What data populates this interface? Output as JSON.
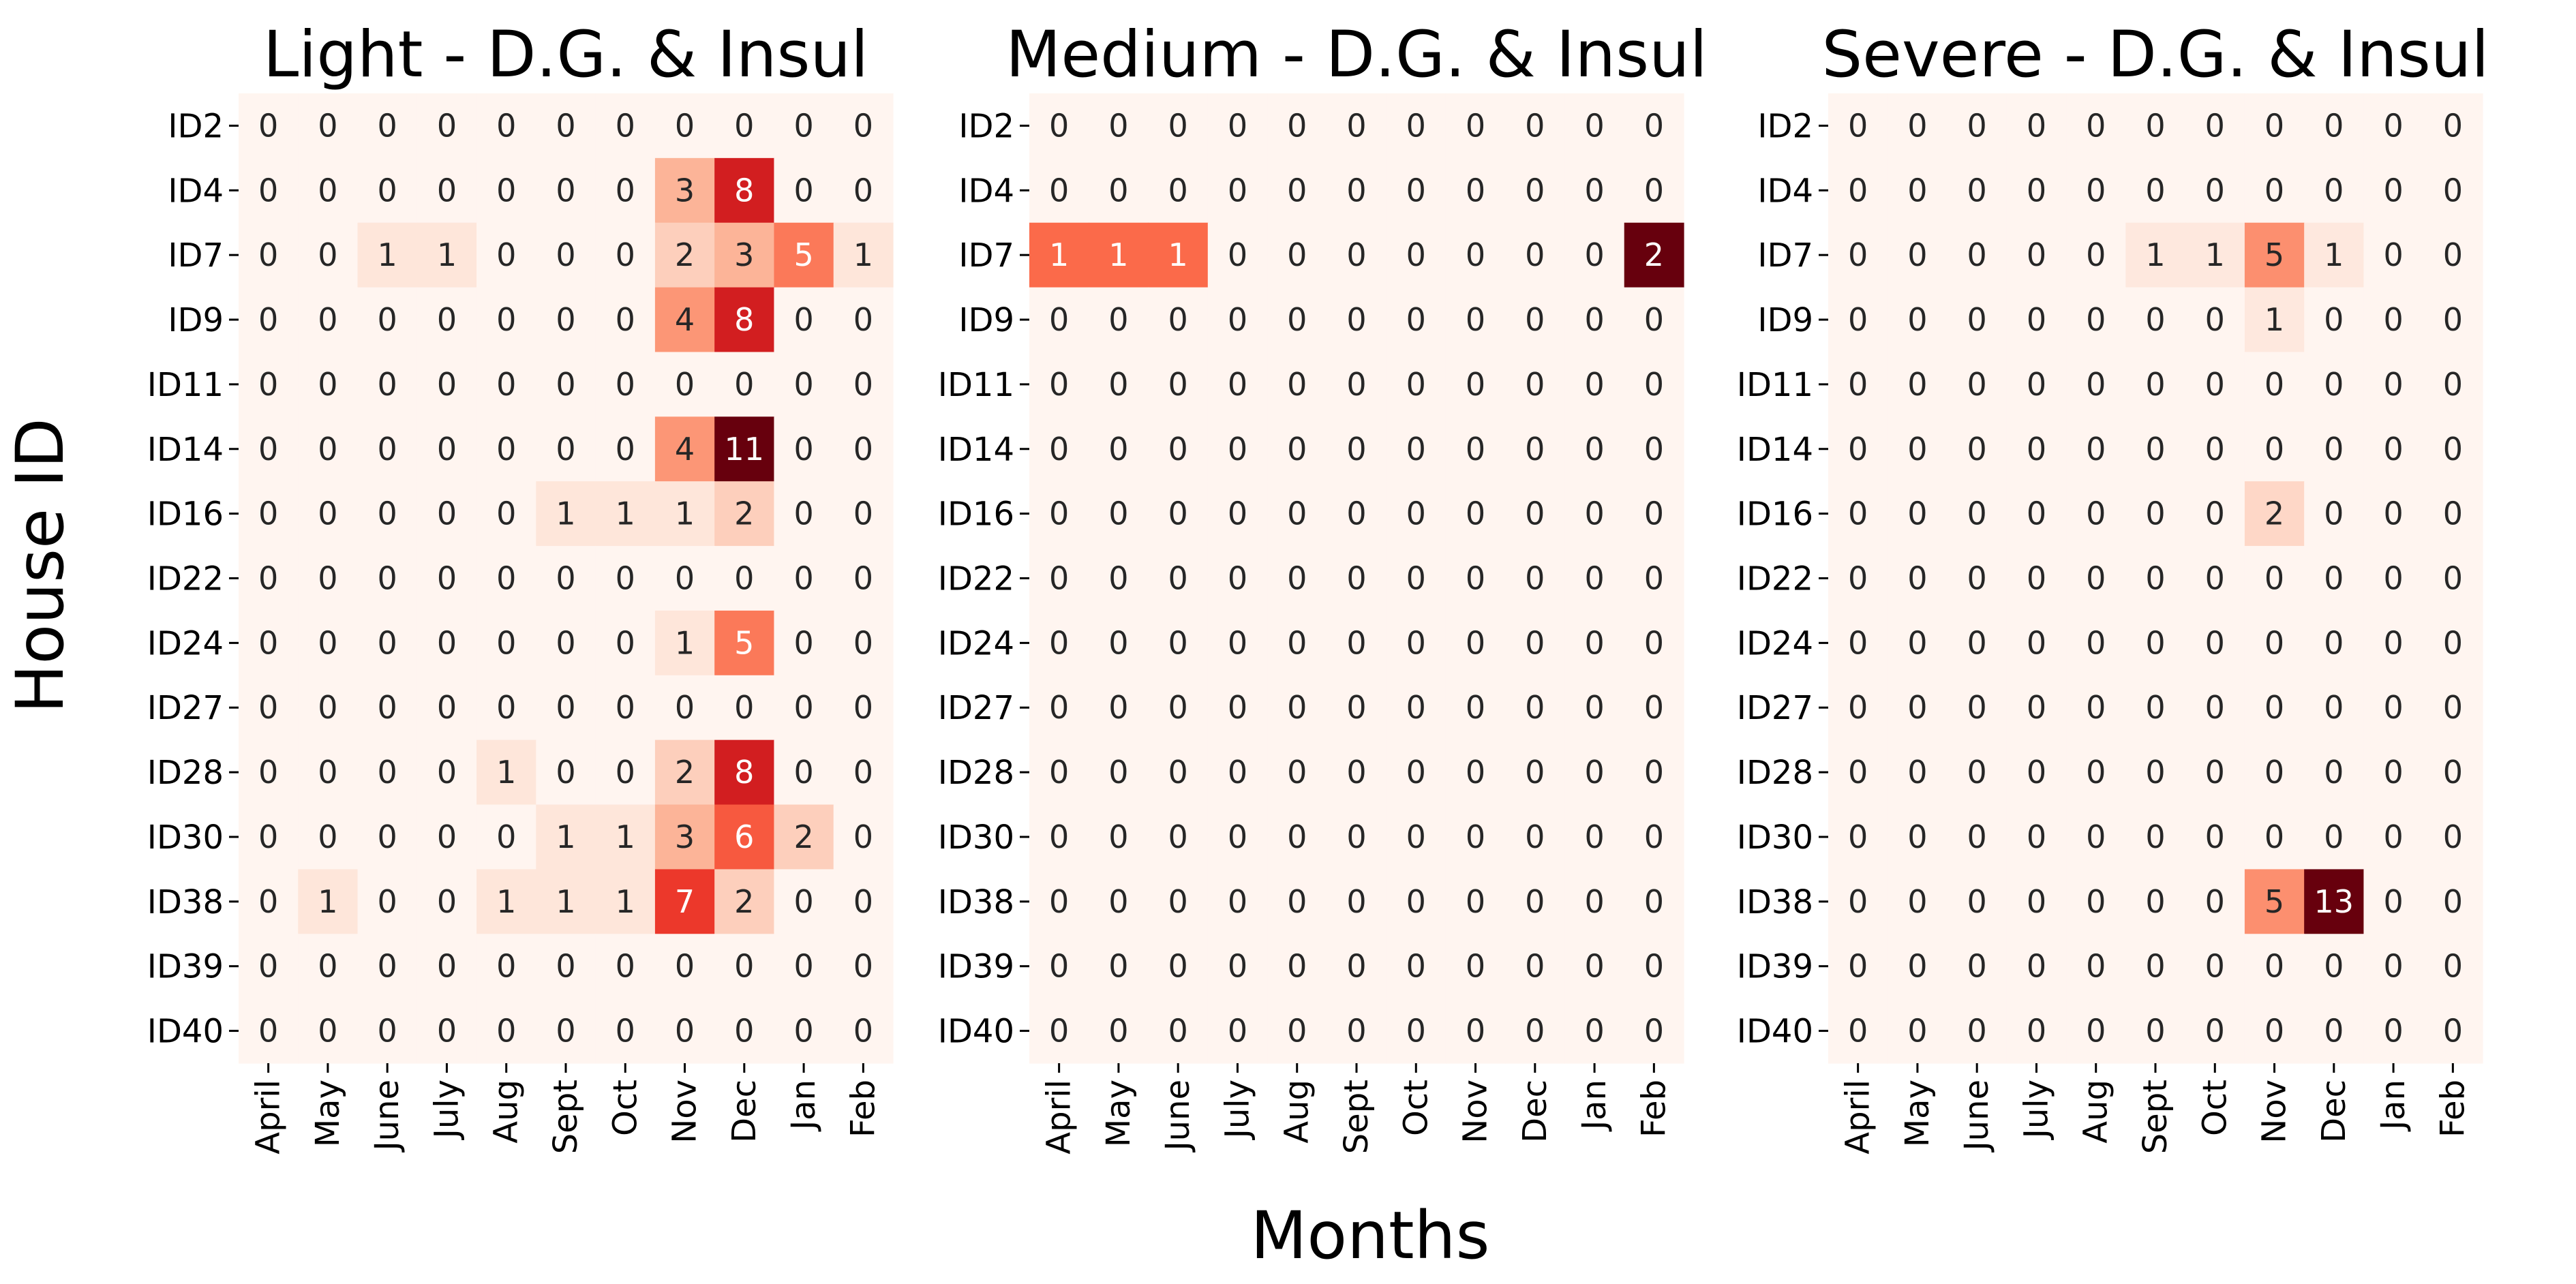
{
  "chart_data": {
    "type": "heatmap",
    "ylabel": "House ID",
    "xlabel": "Months",
    "colormap": "Reds",
    "house_ids": [
      "ID2",
      "ID4",
      "ID7",
      "ID9",
      "ID11",
      "ID14",
      "ID16",
      "ID22",
      "ID24",
      "ID27",
      "ID28",
      "ID30",
      "ID38",
      "ID39",
      "ID40"
    ],
    "months": [
      "April",
      "May",
      "June",
      "July",
      "Aug",
      "Sept",
      "Oct",
      "Nov",
      "Dec",
      "Jan",
      "Feb"
    ],
    "panels": [
      {
        "title": "Light - D.G. & Insul",
        "values": [
          [
            0,
            0,
            0,
            0,
            0,
            0,
            0,
            0,
            0,
            0,
            0
          ],
          [
            0,
            0,
            0,
            0,
            0,
            0,
            0,
            3,
            8,
            0,
            0
          ],
          [
            0,
            0,
            1,
            1,
            0,
            0,
            0,
            2,
            3,
            5,
            1
          ],
          [
            0,
            0,
            0,
            0,
            0,
            0,
            0,
            4,
            8,
            0,
            0
          ],
          [
            0,
            0,
            0,
            0,
            0,
            0,
            0,
            0,
            0,
            0,
            0
          ],
          [
            0,
            0,
            0,
            0,
            0,
            0,
            0,
            4,
            11,
            0,
            0
          ],
          [
            0,
            0,
            0,
            0,
            0,
            1,
            1,
            1,
            2,
            0,
            0
          ],
          [
            0,
            0,
            0,
            0,
            0,
            0,
            0,
            0,
            0,
            0,
            0
          ],
          [
            0,
            0,
            0,
            0,
            0,
            0,
            0,
            1,
            5,
            0,
            0
          ],
          [
            0,
            0,
            0,
            0,
            0,
            0,
            0,
            0,
            0,
            0,
            0
          ],
          [
            0,
            0,
            0,
            0,
            1,
            0,
            0,
            2,
            8,
            0,
            0
          ],
          [
            0,
            0,
            0,
            0,
            0,
            1,
            1,
            3,
            6,
            2,
            0
          ],
          [
            0,
            1,
            0,
            0,
            1,
            1,
            1,
            7,
            2,
            0,
            0
          ],
          [
            0,
            0,
            0,
            0,
            0,
            0,
            0,
            0,
            0,
            0,
            0
          ],
          [
            0,
            0,
            0,
            0,
            0,
            0,
            0,
            0,
            0,
            0,
            0
          ]
        ]
      },
      {
        "title": "Medium - D.G. & Insul",
        "values": [
          [
            0,
            0,
            0,
            0,
            0,
            0,
            0,
            0,
            0,
            0,
            0
          ],
          [
            0,
            0,
            0,
            0,
            0,
            0,
            0,
            0,
            0,
            0,
            0
          ],
          [
            1,
            1,
            1,
            0,
            0,
            0,
            0,
            0,
            0,
            0,
            2
          ],
          [
            0,
            0,
            0,
            0,
            0,
            0,
            0,
            0,
            0,
            0,
            0
          ],
          [
            0,
            0,
            0,
            0,
            0,
            0,
            0,
            0,
            0,
            0,
            0
          ],
          [
            0,
            0,
            0,
            0,
            0,
            0,
            0,
            0,
            0,
            0,
            0
          ],
          [
            0,
            0,
            0,
            0,
            0,
            0,
            0,
            0,
            0,
            0,
            0
          ],
          [
            0,
            0,
            0,
            0,
            0,
            0,
            0,
            0,
            0,
            0,
            0
          ],
          [
            0,
            0,
            0,
            0,
            0,
            0,
            0,
            0,
            0,
            0,
            0
          ],
          [
            0,
            0,
            0,
            0,
            0,
            0,
            0,
            0,
            0,
            0,
            0
          ],
          [
            0,
            0,
            0,
            0,
            0,
            0,
            0,
            0,
            0,
            0,
            0
          ],
          [
            0,
            0,
            0,
            0,
            0,
            0,
            0,
            0,
            0,
            0,
            0
          ],
          [
            0,
            0,
            0,
            0,
            0,
            0,
            0,
            0,
            0,
            0,
            0
          ],
          [
            0,
            0,
            0,
            0,
            0,
            0,
            0,
            0,
            0,
            0,
            0
          ],
          [
            0,
            0,
            0,
            0,
            0,
            0,
            0,
            0,
            0,
            0,
            0
          ]
        ]
      },
      {
        "title": "Severe - D.G. & Insul",
        "values": [
          [
            0,
            0,
            0,
            0,
            0,
            0,
            0,
            0,
            0,
            0,
            0
          ],
          [
            0,
            0,
            0,
            0,
            0,
            0,
            0,
            0,
            0,
            0,
            0
          ],
          [
            0,
            0,
            0,
            0,
            0,
            1,
            1,
            5,
            1,
            0,
            0
          ],
          [
            0,
            0,
            0,
            0,
            0,
            0,
            0,
            1,
            0,
            0,
            0
          ],
          [
            0,
            0,
            0,
            0,
            0,
            0,
            0,
            0,
            0,
            0,
            0
          ],
          [
            0,
            0,
            0,
            0,
            0,
            0,
            0,
            0,
            0,
            0,
            0
          ],
          [
            0,
            0,
            0,
            0,
            0,
            0,
            0,
            2,
            0,
            0,
            0
          ],
          [
            0,
            0,
            0,
            0,
            0,
            0,
            0,
            0,
            0,
            0,
            0
          ],
          [
            0,
            0,
            0,
            0,
            0,
            0,
            0,
            0,
            0,
            0,
            0
          ],
          [
            0,
            0,
            0,
            0,
            0,
            0,
            0,
            0,
            0,
            0,
            0
          ],
          [
            0,
            0,
            0,
            0,
            0,
            0,
            0,
            0,
            0,
            0,
            0
          ],
          [
            0,
            0,
            0,
            0,
            0,
            0,
            0,
            0,
            0,
            0,
            0
          ],
          [
            0,
            0,
            0,
            0,
            0,
            0,
            0,
            5,
            13,
            0,
            0
          ],
          [
            0,
            0,
            0,
            0,
            0,
            0,
            0,
            0,
            0,
            0,
            0
          ],
          [
            0,
            0,
            0,
            0,
            0,
            0,
            0,
            0,
            0,
            0,
            0
          ]
        ]
      }
    ]
  }
}
